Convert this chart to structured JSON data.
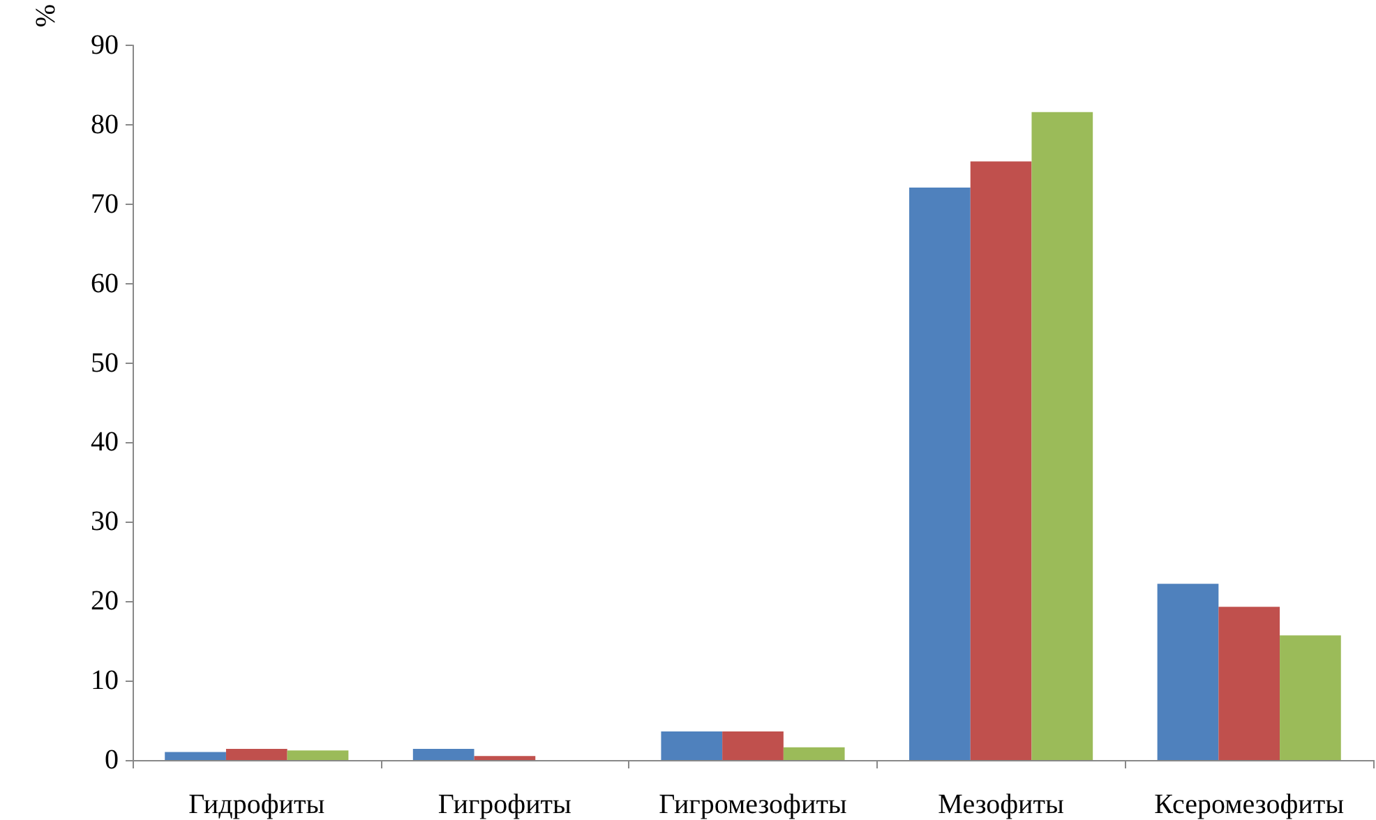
{
  "chart_data": {
    "type": "bar",
    "ylabel": "%",
    "categories": [
      "Гидрофиты",
      "Гигрофиты",
      "Гигромезофиты",
      "Мезофиты",
      "Ксеромезофиты"
    ],
    "series": [
      {
        "color": "#4f81bd",
        "values": [
          1.0,
          1.4,
          3.6,
          72.1,
          22.2
        ]
      },
      {
        "color": "#c0504d",
        "values": [
          1.4,
          0.5,
          3.6,
          75.4,
          19.3
        ]
      },
      {
        "color": "#9bbb59",
        "values": [
          1.2,
          null,
          1.6,
          81.6,
          15.7
        ]
      }
    ],
    "ylim": [
      0,
      90
    ],
    "yticks": [
      0,
      10,
      20,
      30,
      40,
      50,
      60,
      70,
      80,
      90
    ],
    "grid": false
  }
}
